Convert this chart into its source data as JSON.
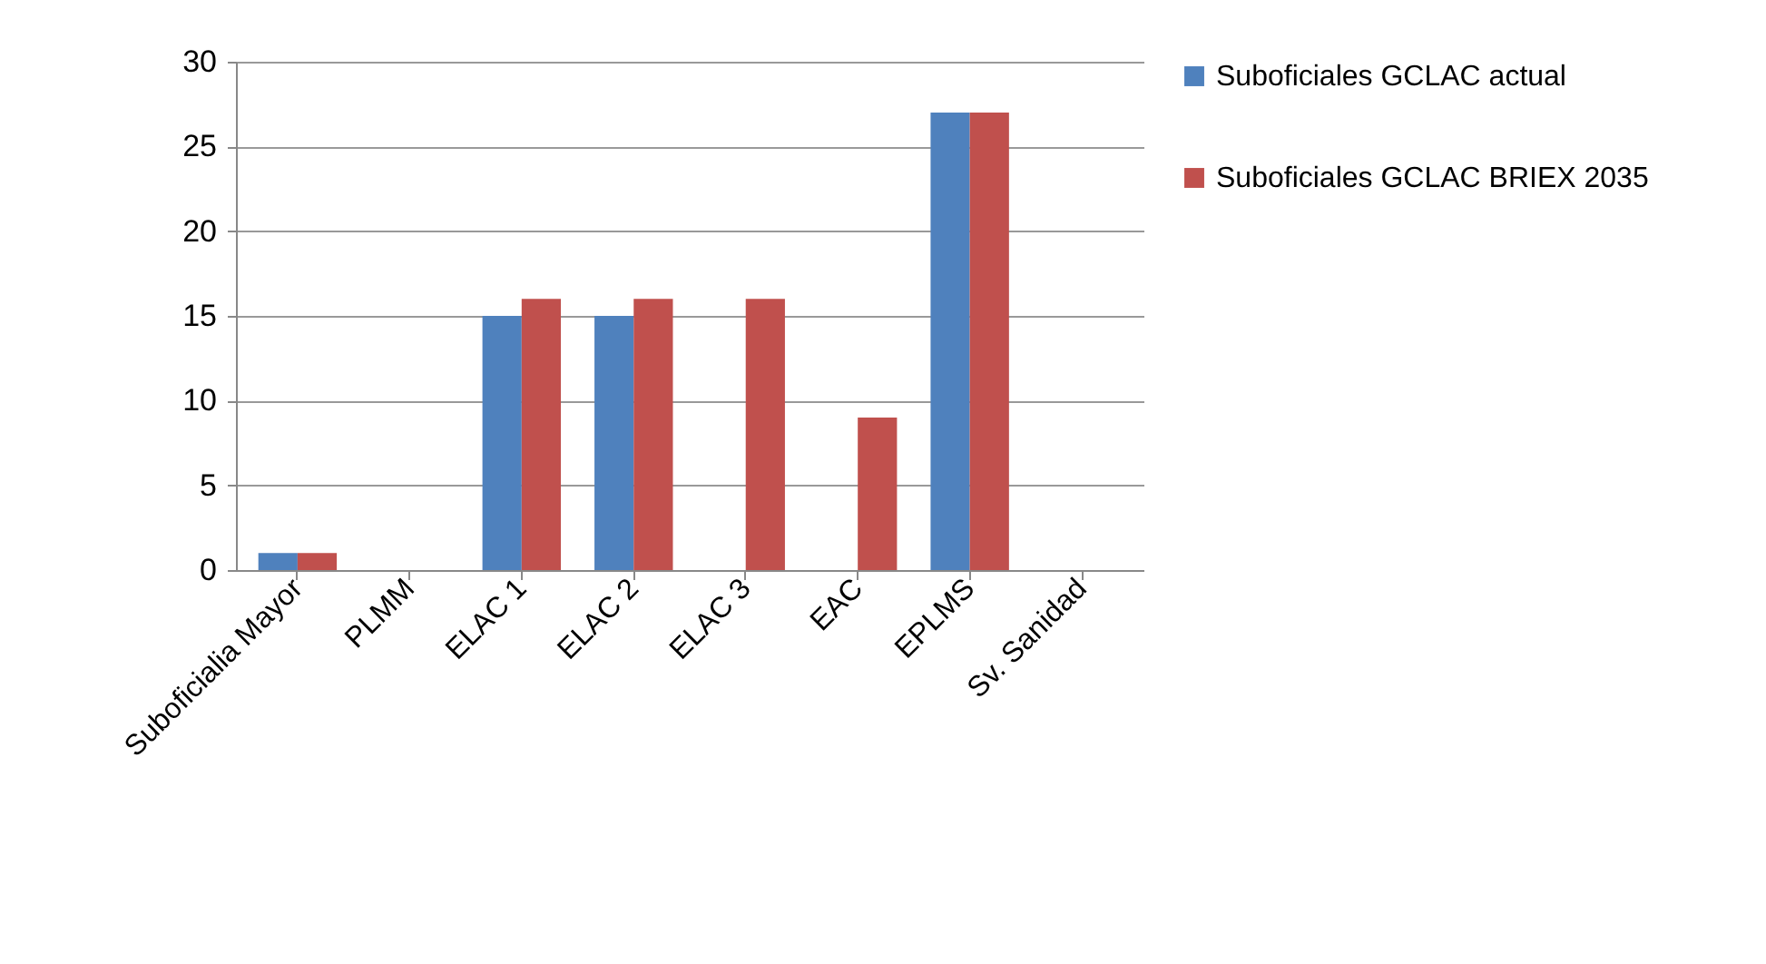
{
  "chart_data": {
    "type": "bar",
    "categories": [
      "Suboficialia Mayor",
      "PLMM",
      "ELAC 1",
      "ELAC 2",
      "ELAC 3",
      "EAC",
      "EPLMS",
      "Sv. Sanidad"
    ],
    "series": [
      {
        "name": "Suboficiales GCLAC actual",
        "color": "#4f81bd",
        "values": [
          1,
          0,
          15,
          15,
          0,
          0,
          27,
          0
        ]
      },
      {
        "name": "Suboficiales GCLAC BRIEX 2035",
        "color": "#c0504d",
        "values": [
          1,
          0,
          16,
          16,
          16,
          9,
          27,
          0
        ]
      }
    ],
    "ylim": [
      0,
      30
    ],
    "yticks": [
      0,
      5,
      10,
      15,
      20,
      25,
      30
    ],
    "grid": "y",
    "legend": "right"
  }
}
